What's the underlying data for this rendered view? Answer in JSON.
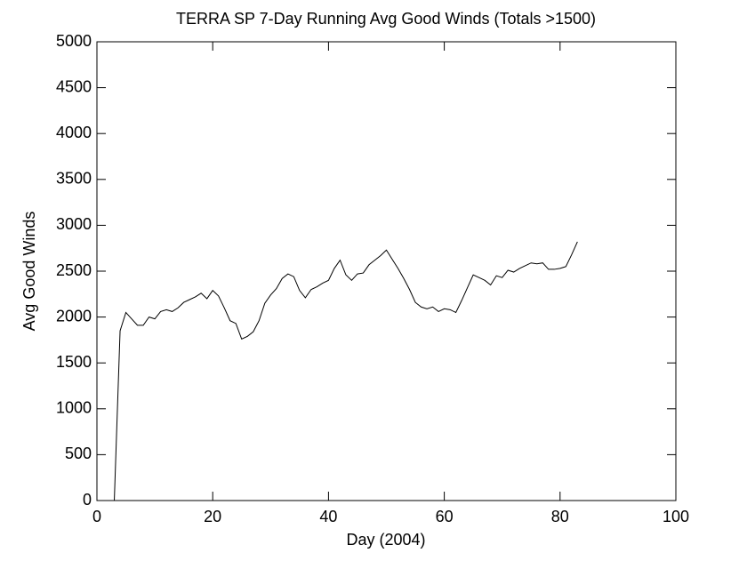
{
  "chart_data": {
    "type": "line",
    "title": "TERRA SP 7-Day Running Avg Good Winds (Totals >1500)",
    "x_label": "Day (2004)",
    "y_label": "Avg Good Winds",
    "x": [
      3,
      4,
      5,
      6,
      7,
      8,
      9,
      10,
      11,
      12,
      13,
      14,
      15,
      16,
      17,
      18,
      19,
      20,
      21,
      22,
      23,
      24,
      25,
      26,
      27,
      28,
      29,
      30,
      31,
      32,
      33,
      34,
      35,
      36,
      37,
      38,
      39,
      40,
      41,
      42,
      43,
      44,
      45,
      46,
      47,
      48,
      49,
      50,
      51,
      52,
      53,
      54,
      55,
      56,
      57,
      58,
      59,
      60,
      61,
      62,
      63,
      64,
      65,
      66,
      67,
      68,
      69,
      70,
      71,
      72,
      73,
      74,
      75,
      76,
      77,
      78,
      79,
      80,
      81,
      82,
      83
    ],
    "series": [
      {
        "color": "#000000",
        "values": [
          0,
          1850,
          2050,
          1980,
          1910,
          1910,
          2000,
          1980,
          2060,
          2080,
          2060,
          2100,
          2160,
          2190,
          2220,
          2260,
          2200,
          2290,
          2230,
          2100,
          1960,
          1930,
          1760,
          1790,
          1840,
          1960,
          2150,
          2240,
          2310,
          2420,
          2470,
          2440,
          2290,
          2210,
          2300,
          2330,
          2370,
          2400,
          2530,
          2620,
          2460,
          2400,
          2470,
          2480,
          2570,
          2620,
          2670,
          2730,
          2630,
          2530,
          2420,
          2300,
          2160,
          2110,
          2090,
          2110,
          2060,
          2090,
          2080,
          2050,
          2180,
          2320,
          2460,
          2430,
          2400,
          2350,
          2450,
          2430,
          2510,
          2490,
          2530,
          2560,
          2590,
          2580,
          2590,
          2520,
          2520,
          2530,
          2550,
          2680,
          2820
        ]
      }
    ],
    "xlim": [
      0,
      100
    ],
    "xticks": [
      0,
      20,
      40,
      60,
      80,
      100
    ],
    "ylim": [
      0,
      5000
    ],
    "yticks": [
      0,
      500,
      1000,
      1500,
      2000,
      2500,
      3000,
      3500,
      4000,
      4500,
      5000
    ]
  }
}
